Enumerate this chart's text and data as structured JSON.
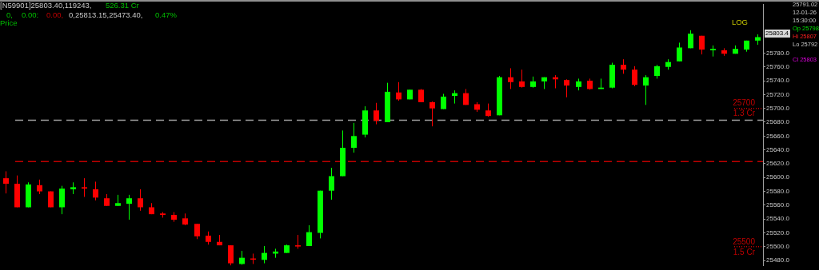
{
  "chart_data": {
    "type": "candlestick",
    "categories": [
      null,
      null,
      null,
      null,
      null,
      null,
      null,
      null,
      null,
      null,
      null,
      null,
      null,
      null,
      null,
      null,
      null,
      null,
      null,
      null,
      null,
      null,
      null,
      null,
      null,
      null,
      null,
      null,
      null,
      null,
      null,
      null,
      null,
      null,
      null,
      null,
      null,
      null,
      null,
      null,
      null,
      null,
      null,
      null,
      null,
      null,
      null,
      null,
      null,
      null,
      null,
      null,
      null,
      null,
      null,
      null,
      null,
      null,
      null,
      null,
      null,
      null,
      null,
      null,
      null,
      null,
      null,
      null
    ],
    "ohlc": [
      [
        25599,
        25609,
        25577,
        25591
      ],
      [
        25591,
        25603,
        25557,
        25557
      ],
      [
        25557,
        25593,
        25557,
        25590
      ],
      [
        25589,
        25597,
        25576,
        25580
      ],
      [
        25580,
        25580,
        25557,
        25557
      ],
      [
        25557,
        25588,
        25547,
        25584
      ],
      [
        25583,
        25593,
        25576,
        25586
      ],
      [
        25586,
        25599,
        25572,
        25584
      ],
      [
        25583,
        25594,
        25567,
        25571
      ],
      [
        25570,
        25576,
        25559,
        25559
      ],
      [
        25559,
        25575,
        25559,
        25563
      ],
      [
        25562,
        25575,
        25539,
        25570
      ],
      [
        25570,
        25583,
        25552,
        25557
      ],
      [
        25557,
        25563,
        25547,
        25547
      ],
      [
        25548,
        25550,
        25542,
        25546
      ],
      [
        25546,
        25550,
        25536,
        25539
      ],
      [
        25541,
        25548,
        25531,
        25532
      ],
      [
        25533,
        25533,
        25511,
        25515
      ],
      [
        25516,
        25522,
        25503,
        25507
      ],
      [
        25507,
        25517,
        25502,
        25502
      ],
      [
        25502,
        25502,
        25473,
        25476
      ],
      [
        25475,
        25494,
        25474,
        25484
      ],
      [
        25483,
        25490,
        25475,
        25482
      ],
      [
        25481,
        25501,
        25476,
        25491
      ],
      [
        25490,
        25497,
        25484,
        25493
      ],
      [
        25491,
        25503,
        25491,
        25502
      ],
      [
        25502,
        25517,
        25497,
        25501
      ],
      [
        25501,
        25531,
        25501,
        25521
      ],
      [
        25520,
        25581,
        25512,
        25581
      ],
      [
        25581,
        25614,
        25568,
        25602
      ],
      [
        25602,
        25668,
        25602,
        25643
      ],
      [
        25643,
        25679,
        25636,
        25660
      ],
      [
        25662,
        25703,
        25658,
        25697
      ],
      [
        25697,
        25708,
        25677,
        25682
      ],
      [
        25680,
        25737,
        25680,
        25724
      ],
      [
        25723,
        25738,
        25711,
        25713
      ],
      [
        25713,
        25727,
        25713,
        25727
      ],
      [
        25727,
        25728,
        25709,
        25709
      ],
      [
        25709,
        25710,
        25674,
        25700
      ],
      [
        25699,
        25721,
        25699,
        25717
      ],
      [
        25718,
        25726,
        25707,
        25722
      ],
      [
        25722,
        25728,
        25705,
        25705
      ],
      [
        25706,
        25709,
        25695,
        25698
      ],
      [
        25697,
        25707,
        25688,
        25689
      ],
      [
        25690,
        25747,
        25690,
        25745
      ],
      [
        25745,
        25758,
        25728,
        25738
      ],
      [
        25739,
        25756,
        25730,
        25731
      ],
      [
        25731,
        25746,
        25730,
        25739
      ],
      [
        25739,
        25745,
        25728,
        25745
      ],
      [
        25745,
        25748,
        25729,
        25742
      ],
      [
        25741,
        25742,
        25716,
        25733
      ],
      [
        25731,
        25743,
        25726,
        25739
      ],
      [
        25740,
        25743,
        25727,
        25728
      ],
      [
        25728,
        25743,
        25728,
        25730
      ],
      [
        25730,
        25766,
        25729,
        25763
      ],
      [
        25763,
        25771,
        25750,
        25756
      ],
      [
        25756,
        25761,
        25732,
        25734
      ],
      [
        25733,
        25748,
        25705,
        25745
      ],
      [
        25747,
        25763,
        25743,
        25761
      ],
      [
        25760,
        25771,
        25756,
        25767
      ],
      [
        25768,
        25795,
        25768,
        25788
      ],
      [
        25787,
        25813,
        25787,
        25808
      ],
      [
        25805,
        25805,
        25778,
        25785
      ],
      [
        25784,
        25791,
        25775,
        25786
      ],
      [
        25784,
        25787,
        25776,
        25779
      ],
      [
        25779,
        25791,
        25779,
        25786
      ],
      [
        25785,
        25798,
        25782,
        25798
      ],
      [
        25798,
        25807,
        25792,
        25803
      ]
    ],
    "colors": [
      "#ff0000",
      "#ff0000",
      "#00ff00",
      "#ff0000",
      "#ff0000",
      "#00ff00",
      "#00ff00",
      "#ff0000",
      "#ff0000",
      "#ff0000",
      "#00ff00",
      "#00ff00",
      "#ff0000",
      "#ff0000",
      "#ff0000",
      "#ff0000",
      "#ff0000",
      "#ff0000",
      "#ff0000",
      "#ff0000",
      "#ff0000",
      "#00ff00",
      "#ff0000",
      "#00ff00",
      "#00ff00",
      "#00ff00",
      "#ff0000",
      "#00ff00",
      "#00ff00",
      "#00ff00",
      "#00ff00",
      "#00ff00",
      "#00ff00",
      "#ff0000",
      "#00ff00",
      "#ff0000",
      "#00ff00",
      "#ff0000",
      "#ff0000",
      "#00ff00",
      "#00ff00",
      "#ff0000",
      "#ff0000",
      "#ff0000",
      "#00ff00",
      "#ff0000",
      "#ff0000",
      "#00ff00",
      "#00ff00",
      "#ff0000",
      "#ff0000",
      "#00ff00",
      "#ff0000",
      "#00ff00",
      "#00ff00",
      "#ff0000",
      "#ff0000",
      "#00ff00",
      "#00ff00",
      "#00ff00",
      "#00ff00",
      "#00ff00",
      "#ff0000",
      "#00ff00",
      "#ff0000",
      "#00ff00",
      "#00ff00",
      "#00ff00"
    ],
    "ylim": [
      25473,
      25850
    ],
    "yticks": [
      {
        "value": 25480,
        "label": "25480.0"
      },
      {
        "value": 25500,
        "label": "25500.0"
      },
      {
        "value": 25520,
        "label": "25520.0"
      },
      {
        "value": 25540,
        "label": "25540.0"
      },
      {
        "value": 25560,
        "label": "25560.0"
      },
      {
        "value": 25580,
        "label": "25580.0"
      },
      {
        "value": 25600,
        "label": "25600.0"
      },
      {
        "value": 25620,
        "label": "25620.0"
      },
      {
        "value": 25640,
        "label": "25640.0"
      },
      {
        "value": 25660,
        "label": "25660.0"
      },
      {
        "value": 25680,
        "label": "25680.0"
      },
      {
        "value": 25700,
        "label": "25700.0"
      },
      {
        "value": 25720,
        "label": "25720.0"
      },
      {
        "value": 25740,
        "label": "25740.0"
      },
      {
        "value": 25760,
        "label": "25760.0"
      },
      {
        "value": 25780,
        "label": "25780.0"
      }
    ],
    "tick_labels": "y",
    "grid": false,
    "legend": false,
    "ref_lines": [
      {
        "axis": "y",
        "value": 25683,
        "color": "#a0a0a0",
        "line_style": "dashed"
      },
      {
        "axis": "y",
        "value": 25623,
        "color": "#c00000",
        "line_style": "dashed"
      },
      {
        "axis": "y",
        "value": 25700,
        "label": "25700\n1.3 Cr",
        "color": "#c00000",
        "line_style": "dotted"
      },
      {
        "axis": "y",
        "value": 25500,
        "label": "25500\n1.5 Cr",
        "color": "#c00000",
        "line_style": "dotted"
      }
    ],
    "annotations": [
      "[N59901]25803.40,119243,",
      "526.31 Cr",
      "0,",
      "0.00:",
      "0.00,",
      "0,25813.15,25473.40,",
      "0.47%",
      "Price",
      "LOG",
      "25791.02",
      "12-01-26",
      "15:30:00",
      "Op 25798",
      "Hi 25807",
      "Lo 25792",
      "Cl 25803",
      "25803.4"
    ]
  }
}
